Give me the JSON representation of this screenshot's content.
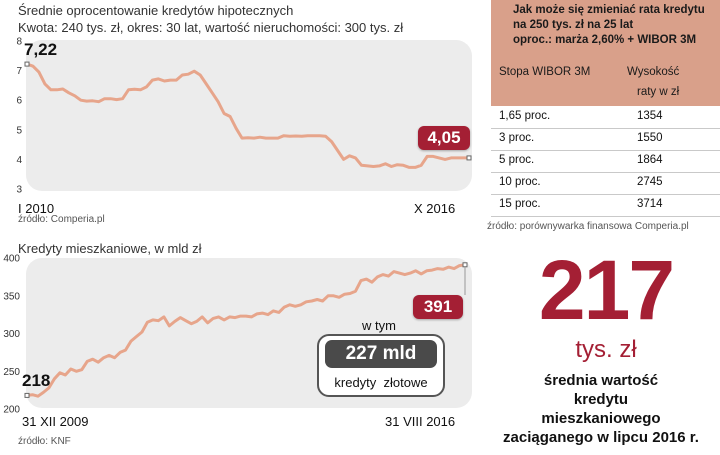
{
  "chart1": {
    "title": "Średnie oprocentowanie kredytów hipotecznych",
    "subtitle": "Kwota: 240 tys. zł, okres: 30 lat, wartość nieruchomości: 300 tys. zł",
    "start_label": "7,22",
    "end_label": "4,05",
    "x_start": "I 2010",
    "x_end": "X 2016",
    "source": "źródło: Comperia.pl"
  },
  "chart2": {
    "title": "Kredyty mieszkaniowe, w mld zł",
    "start_label": "218",
    "end_label": "391",
    "x_start": "31 XII 2009",
    "x_end": "31 VIII 2016",
    "source": "źródło: KNF",
    "callout_prefix": "w tym",
    "callout_value": "227 mld",
    "callout_caption": "kredyty  złotowe"
  },
  "table": {
    "title_line1": "Jak może się zmieniać rata kredytu",
    "title_line2": "na 250 tys. zł na 25 lat",
    "title_line3": "oproc.: marża 2,60% + WIBOR 3M",
    "col1": "Stopa WIBOR 3M",
    "col2_line1": "Wysokość",
    "col2_line2": "raty w zł",
    "rows": [
      {
        "rate": "1,65 proc.",
        "payment": "1354"
      },
      {
        "rate": "3 proc.",
        "payment": "1550"
      },
      {
        "rate": "5 proc.",
        "payment": "1864"
      },
      {
        "rate": "10 proc.",
        "payment": "2745"
      },
      {
        "rate": "15 proc.",
        "payment": "3714"
      }
    ],
    "source": "źródło: porównywarka finansowa Comperia.pl"
  },
  "highlight": {
    "number": "217",
    "unit": "tys. zł",
    "desc_line1": "średnia wartość",
    "desc_line2": "kredytu",
    "desc_line3": "mieszkaniowego",
    "desc_line4": "zaciąganego w lipcu 2016 r."
  },
  "colors": {
    "line": "#e7a58b",
    "badge": "#a41f34",
    "accent_text": "#a41f34",
    "table_header": "#d9a08a",
    "panel": "#ececec"
  },
  "chart_data": [
    {
      "type": "line",
      "title": "Średnie oprocentowanie kredytów hipotecznych",
      "ylim": [
        3,
        8
      ],
      "yticks": [
        3,
        4,
        5,
        6,
        7,
        8
      ],
      "x_tick_labels": [
        "I 2010",
        "X 2016"
      ],
      "series": [
        {
          "values": [
            7.22,
            7.15,
            6.95,
            6.55,
            6.35,
            6.35,
            6.38,
            6.25,
            6.15,
            6.0,
            5.97,
            5.98,
            5.95,
            6.05,
            6.05,
            6.02,
            6.05,
            6.35,
            6.37,
            6.35,
            6.45,
            6.68,
            6.72,
            6.65,
            6.68,
            6.68,
            6.85,
            6.88,
            6.98,
            6.85,
            6.55,
            6.25,
            5.95,
            5.55,
            5.45,
            5.05,
            4.72,
            4.73,
            4.72,
            4.75,
            4.72,
            4.72,
            4.72,
            4.8,
            4.78,
            4.79,
            4.78,
            4.8,
            4.8,
            4.8,
            4.78,
            4.6,
            4.3,
            4.0,
            4.12,
            4.05,
            3.8,
            3.78,
            3.76,
            3.78,
            3.85,
            3.76,
            3.82,
            3.8,
            3.73,
            3.73,
            3.8,
            4.1,
            4.1,
            4.05,
            4.0,
            4.05,
            4.05,
            4.05,
            4.05
          ]
        }
      ],
      "annotations": [
        "7,22",
        "4,05"
      ]
    },
    {
      "type": "line",
      "title": "Kredyty mieszkaniowe, w mld zł",
      "ylim": [
        200,
        400
      ],
      "yticks": [
        200,
        250,
        300,
        350,
        400
      ],
      "x_tick_labels": [
        "31 XII 2009",
        "31 VIII 2016"
      ],
      "series": [
        {
          "values": [
            218,
            219,
            217,
            222,
            228,
            240,
            248,
            245,
            253,
            250,
            252,
            263,
            266,
            262,
            268,
            271,
            268,
            275,
            278,
            290,
            296,
            302,
            315,
            318,
            317,
            322,
            310,
            316,
            321,
            317,
            313,
            316,
            322,
            314,
            320,
            322,
            318,
            322,
            321,
            323,
            323,
            322,
            326,
            327,
            325,
            330,
            328,
            335,
            338,
            336,
            338,
            342,
            343,
            345,
            343,
            350,
            350,
            348,
            352,
            353,
            356,
            370,
            372,
            368,
            375,
            378,
            376,
            382,
            380,
            378,
            380,
            383,
            379,
            383,
            384,
            386,
            385,
            388,
            386,
            390,
            391
          ]
        }
      ],
      "annotations": [
        "218",
        "391",
        "w tym",
        "227 mld",
        "kredyty  złotowe"
      ]
    }
  ]
}
